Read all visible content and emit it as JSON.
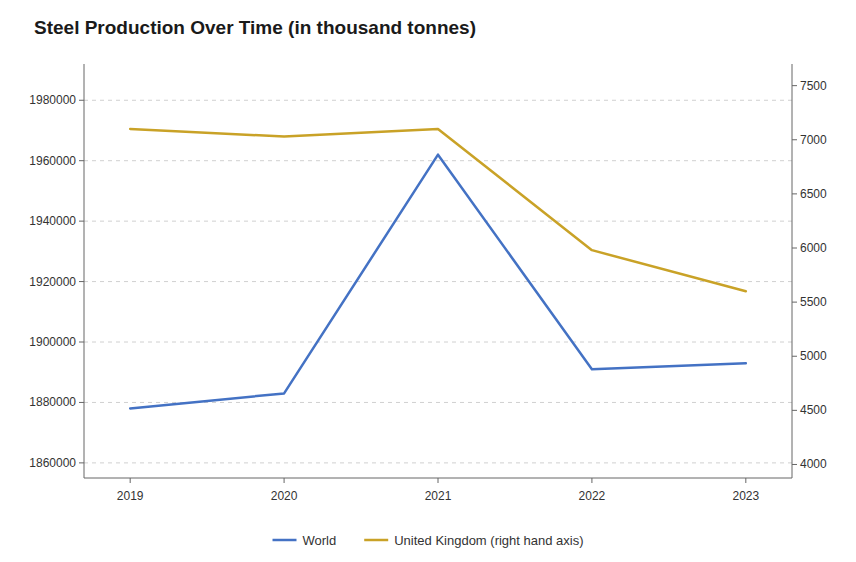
{
  "chart_data": {
    "type": "line",
    "title": "Steel Production Over Time (in thousand tonnes)",
    "categories": [
      "2019",
      "2020",
      "2021",
      "2022",
      "2023"
    ],
    "series": [
      {
        "name": "World",
        "color": "#4472c4",
        "values": [
          1878000,
          1883000,
          1962000,
          1891000,
          1893000
        ]
      },
      {
        "name": "United Kingdom (right hand axis)",
        "color": "#c9a227",
        "axis": "y2",
        "values": [
          7100,
          7030,
          7100,
          5980,
          5600
        ]
      }
    ],
    "ylim": [
      1855000,
      1992000
    ],
    "yticks": [
      1860000,
      1880000,
      1900000,
      1920000,
      1940000,
      1960000,
      1980000
    ],
    "y2lim": [
      3875,
      7700
    ],
    "y2ticks": [
      4000,
      4500,
      5000,
      5500,
      6000,
      6500,
      7000,
      7500
    ],
    "grid": true,
    "legend": "bottom"
  }
}
